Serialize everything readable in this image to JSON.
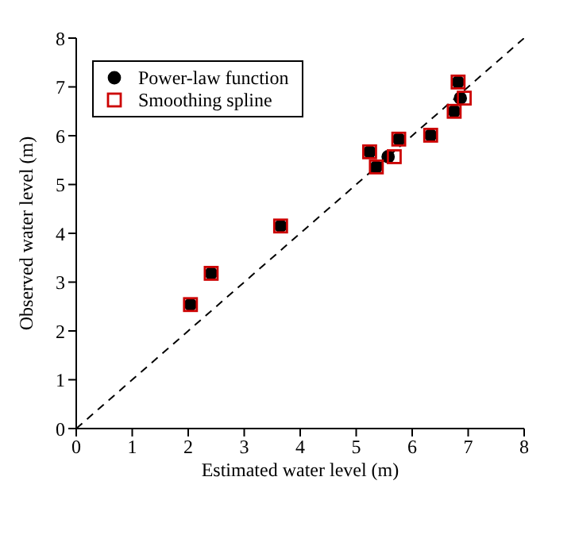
{
  "chart_data": {
    "type": "scatter",
    "xlabel": "Estimated water level (m)",
    "ylabel": "Observed water level (m)",
    "xlim": [
      0,
      8
    ],
    "ylim": [
      0,
      8
    ],
    "xticks": [
      0,
      1,
      2,
      3,
      4,
      5,
      6,
      7,
      8
    ],
    "yticks": [
      0,
      1,
      2,
      3,
      4,
      5,
      6,
      7,
      8
    ],
    "legend": "top left",
    "series": [
      {
        "name": "Power-law function",
        "marker": "circle",
        "color": "#000000",
        "x": [
          2.04,
          2.41,
          3.65,
          5.24,
          5.36,
          5.57,
          5.76,
          6.33,
          6.75,
          6.82,
          6.86
        ],
        "values": [
          2.54,
          3.18,
          4.15,
          5.67,
          5.36,
          5.57,
          5.93,
          6.01,
          6.5,
          7.1,
          6.77
        ]
      },
      {
        "name": "Smoothing spline",
        "marker": "square",
        "color": "#cc0000",
        "x": [
          2.04,
          2.41,
          3.65,
          5.24,
          5.36,
          5.68,
          5.76,
          6.33,
          6.75,
          6.82,
          6.93
        ],
        "values": [
          2.54,
          3.18,
          4.15,
          5.67,
          5.36,
          5.57,
          5.93,
          6.01,
          6.5,
          7.1,
          6.77
        ]
      },
      {
        "type": "line",
        "line_style": "dashed",
        "marker": "none",
        "color": "#000000",
        "x": [
          0,
          8
        ],
        "values": [
          0,
          8
        ]
      }
    ]
  }
}
